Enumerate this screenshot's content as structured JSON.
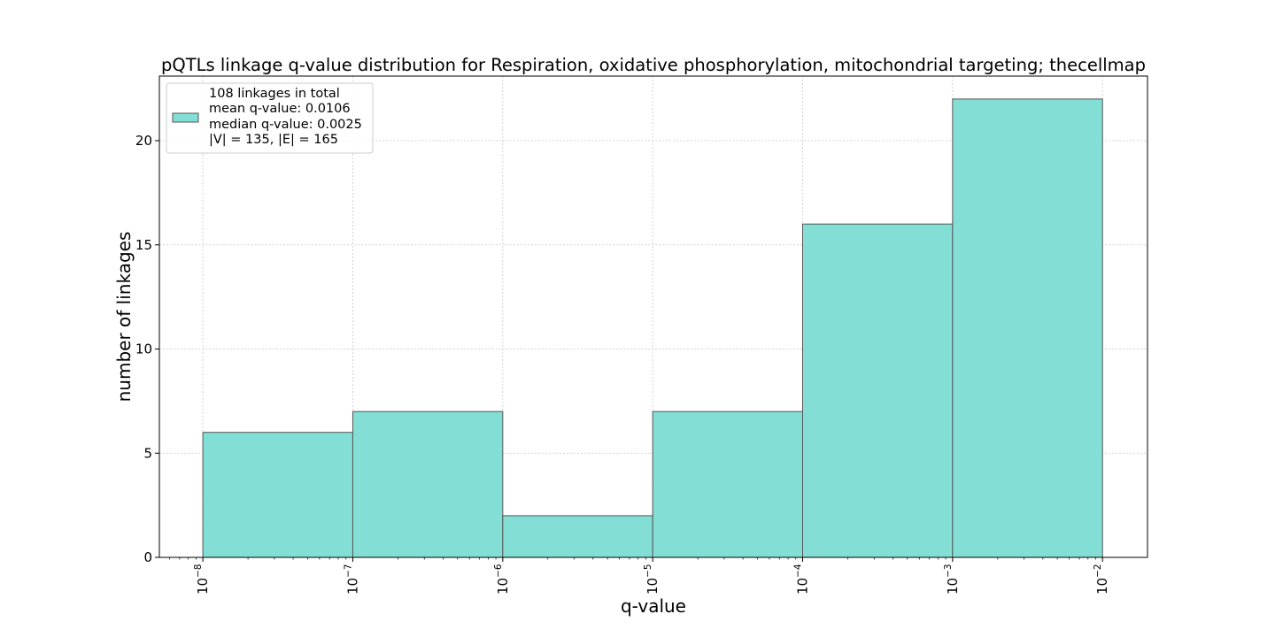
{
  "chart_data": {
    "type": "bar",
    "title": "pQTLs linkage q-value distribution for Respiration, oxidative phosphorylation, mitochondrial targeting; thecellmap",
    "xlabel": "q-value",
    "ylabel": "number of linkages",
    "x_scale": "log",
    "x_ticks": [
      {
        "exp": "−8"
      },
      {
        "exp": "−7"
      },
      {
        "exp": "−6"
      },
      {
        "exp": "−5"
      },
      {
        "exp": "−4"
      },
      {
        "exp": "−3"
      },
      {
        "exp": "−2"
      }
    ],
    "y_ticks": [
      0,
      5,
      10,
      15,
      20
    ],
    "ylim": [
      0,
      23.1
    ],
    "grid": true,
    "bins": [
      {
        "from_exp": -8,
        "to_exp": -7,
        "count": 6
      },
      {
        "from_exp": -7,
        "to_exp": -6,
        "count": 7
      },
      {
        "from_exp": -6,
        "to_exp": -5,
        "count": 2
      },
      {
        "from_exp": -5,
        "to_exp": -4,
        "count": 7
      },
      {
        "from_exp": -4,
        "to_exp": -3,
        "count": 16
      },
      {
        "from_exp": -3,
        "to_exp": -2,
        "count": 22
      }
    ],
    "bar_color": "#83dfd5",
    "edge_color": "#555555",
    "legend": {
      "placement": "top-left",
      "lines": [
        "108 linkages in total",
        "mean q-value: 0.0106",
        "median q-value: 0.0025",
        "|V| = 135, |E| = 165"
      ]
    }
  }
}
